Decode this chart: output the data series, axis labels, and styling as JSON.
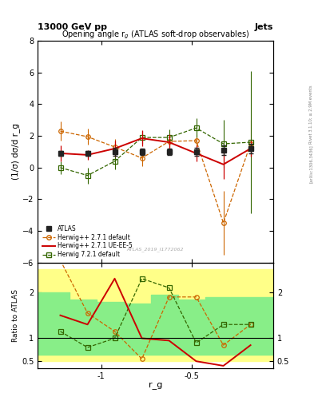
{
  "title": "Opening angle r$_g$ (ATLAS soft-drop observables)",
  "header_left": "13000 GeV pp",
  "header_right": "Jets",
  "ylabel_main": "(1/σ) dσ/d r_g",
  "ylabel_ratio": "Ratio to ATLAS",
  "xlabel": "r_g",
  "watermark": "ATLAS_2019_I1772062",
  "rivet_label": "Rivet 3.1.10; ≥ 2.9M events",
  "arxiv_label": "[arXiv:1306.3436]",
  "x_values": [
    -1.225,
    -1.075,
    -0.925,
    -0.775,
    -0.625,
    -0.475,
    -0.325,
    -0.175
  ],
  "atlas_y": [
    0.9,
    0.9,
    1.0,
    1.0,
    1.0,
    1.0,
    1.1,
    1.2
  ],
  "atlas_yerr_lo": [
    0.15,
    0.15,
    0.25,
    0.2,
    0.2,
    0.25,
    0.3,
    0.3
  ],
  "atlas_yerr_hi": [
    0.15,
    0.15,
    0.25,
    0.2,
    0.2,
    0.25,
    0.3,
    0.3
  ],
  "herwig_def_y": [
    2.3,
    1.95,
    1.3,
    0.6,
    1.65,
    1.7,
    -3.5,
    1.5
  ],
  "herwig_def_yerr_lo": [
    0.6,
    0.5,
    0.5,
    0.5,
    0.4,
    0.4,
    2.0,
    0.8
  ],
  "herwig_def_yerr_hi": [
    0.6,
    0.5,
    0.5,
    0.5,
    0.4,
    0.4,
    2.0,
    1.5
  ],
  "herwig_ue_y": [
    0.9,
    0.8,
    1.2,
    1.85,
    1.6,
    0.9,
    0.2,
    1.2
  ],
  "herwig_ue_yerr_lo": [
    0.5,
    0.3,
    0.5,
    0.5,
    0.5,
    0.5,
    0.9,
    0.5
  ],
  "herwig_ue_yerr_hi": [
    0.5,
    0.3,
    0.5,
    0.5,
    0.5,
    0.5,
    0.9,
    0.5
  ],
  "herwig721_y": [
    0.0,
    -0.5,
    0.4,
    1.9,
    1.9,
    2.5,
    1.5,
    1.6
  ],
  "herwig721_yerr_lo": [
    0.4,
    0.5,
    0.5,
    0.4,
    0.5,
    0.6,
    1.5,
    4.5
  ],
  "herwig721_yerr_hi": [
    0.4,
    0.5,
    0.5,
    0.4,
    0.5,
    0.6,
    1.5,
    4.5
  ],
  "ylim_main": [
    -6,
    8
  ],
  "ylim_ratio": [
    0.35,
    2.65
  ],
  "xlim": [
    -1.35,
    -0.05
  ],
  "ratio_def_y": [
    2.7,
    1.55,
    1.15,
    0.55,
    1.9,
    1.9,
    0.85,
    1.3
  ],
  "ratio_ue_y": [
    1.5,
    1.3,
    2.3,
    1.0,
    0.95,
    0.5,
    0.4,
    0.85
  ],
  "ratio_721_y": [
    1.15,
    0.8,
    1.0,
    2.3,
    2.1,
    0.9,
    1.3,
    1.3
  ],
  "color_atlas": "#222222",
  "color_herwig_def": "#cc6600",
  "color_herwig_ue": "#cc0000",
  "color_herwig721": "#336600",
  "band_yellow": "#ffff88",
  "band_green": "#88ee88",
  "band_x_edges": [
    -1.35,
    -1.175,
    -1.025,
    -0.875,
    -0.725,
    -0.575,
    -0.425,
    -0.275,
    -0.05
  ],
  "band_yellow_lo": [
    0.5,
    0.5,
    0.5,
    0.5,
    0.5,
    0.5,
    0.5,
    0.5
  ],
  "band_yellow_hi": [
    2.5,
    2.5,
    2.5,
    2.5,
    2.5,
    2.5,
    2.5,
    2.5
  ],
  "band_green_lo": [
    0.65,
    0.65,
    0.65,
    0.65,
    0.65,
    0.65,
    0.65,
    0.65
  ],
  "band_green_hi": [
    2.0,
    1.85,
    1.8,
    1.75,
    1.95,
    1.85,
    1.9,
    1.9
  ],
  "xticks": [
    -1.0,
    -0.5
  ],
  "yticks_main": [
    -6,
    -4,
    -2,
    0,
    2,
    4,
    6,
    8
  ],
  "yticks_ratio": [
    0.5,
    1.0,
    2.0
  ],
  "ytick_ratio_labels": [
    "0.5",
    "1",
    "2"
  ]
}
